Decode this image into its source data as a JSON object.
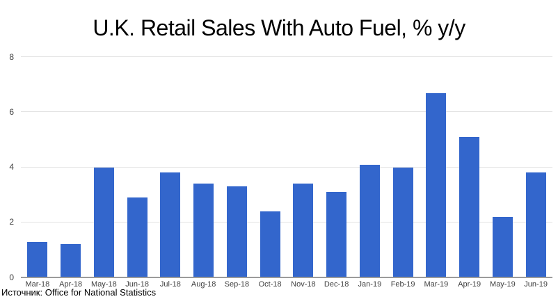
{
  "source_note": "Источник: Office for National Statistics",
  "colors": {
    "bar": "#3366cc",
    "gridline": "#e3e3e3",
    "axis_line": "#9b9b9b",
    "tick_label": "#404040",
    "title": "#000000",
    "background": "#ffffff"
  },
  "chart_data": {
    "type": "bar",
    "title": "U.K. Retail Sales With Auto Fuel, % y/y",
    "categories": [
      "Mar-18",
      "Apr-18",
      "May-18",
      "Jun-18",
      "Jul-18",
      "Aug-18",
      "Sep-18",
      "Oct-18",
      "Nov-18",
      "Dec-18",
      "Jan-19",
      "Feb-19",
      "Mar-19",
      "Apr-19",
      "May-19",
      "Jun-19"
    ],
    "values": [
      1.3,
      1.2,
      4.0,
      2.9,
      3.8,
      3.4,
      3.3,
      2.4,
      3.4,
      3.1,
      4.1,
      4.0,
      6.7,
      5.1,
      2.2,
      3.8
    ],
    "xlabel": "",
    "ylabel": "",
    "ylim": [
      0,
      8
    ],
    "yticks": [
      0,
      2,
      4,
      6,
      8
    ],
    "grid": true,
    "legend": "none"
  }
}
